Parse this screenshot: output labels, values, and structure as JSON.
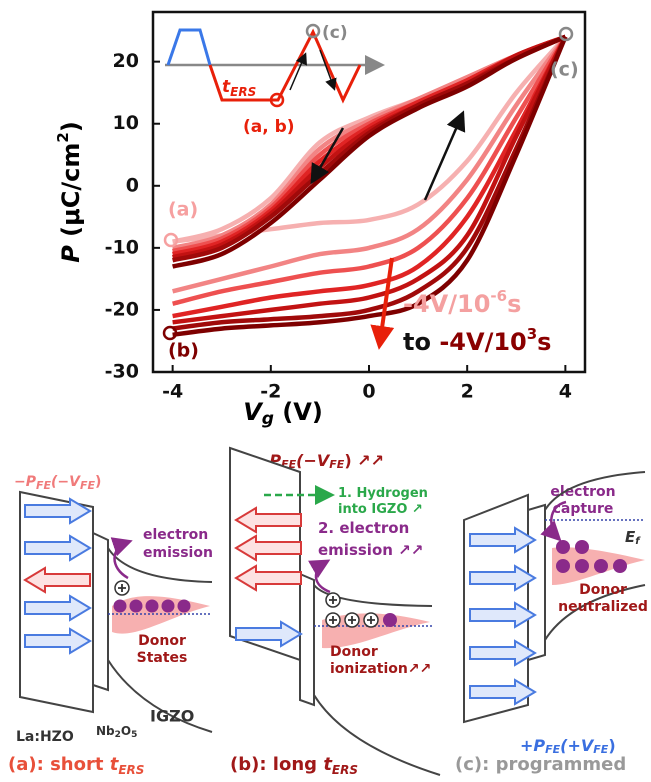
{
  "chart_data": {
    "type": "line",
    "xlabel": [
      "V",
      "g",
      " (V)"
    ],
    "ylabel": [
      "P",
      " (μC/cm",
      "2",
      ")"
    ],
    "xlim": [
      -4.4,
      4.4
    ],
    "xticks": [
      -4,
      -2,
      0,
      2,
      4
    ],
    "ylim": [
      -30,
      28
    ],
    "yticks": [
      -30,
      -20,
      -10,
      0,
      10,
      20
    ],
    "series": [
      {
        "color": "#f6b0b0",
        "x": [
          4,
          3,
          2,
          1,
          0,
          -1,
          -2,
          -3,
          -4,
          null,
          -4,
          -3,
          -2,
          -1,
          0,
          1,
          2,
          3,
          4
        ],
        "values": [
          24,
          21,
          17.5,
          14,
          11,
          7,
          -2,
          -7,
          -9,
          null,
          -9,
          -8,
          -7,
          -6,
          -5.5,
          -3,
          4,
          15,
          24
        ]
      },
      {
        "color": "#f28484",
        "x": [
          4,
          3,
          2,
          1,
          0,
          -1,
          -2,
          -3,
          -4,
          null,
          -4,
          -3,
          -2,
          -1,
          0,
          1,
          2,
          3,
          4
        ],
        "values": [
          24,
          21,
          17.5,
          14,
          10.5,
          6,
          -3,
          -8,
          -10,
          null,
          -17,
          -15,
          -13,
          -11,
          -10,
          -7,
          1,
          13,
          24
        ]
      },
      {
        "color": "#ee5050",
        "x": [
          4,
          3,
          2,
          1,
          0,
          -1,
          -2,
          -3,
          -4,
          null,
          -4,
          -3,
          -2,
          -1,
          0,
          1,
          2,
          3,
          4
        ],
        "values": [
          24,
          21,
          17,
          13.5,
          10,
          5,
          -3.5,
          -8.5,
          -10.5,
          null,
          -19,
          -17,
          -15.5,
          -14,
          -13,
          -10,
          -2,
          11,
          24
        ]
      },
      {
        "color": "#e02424",
        "x": [
          4,
          3,
          2,
          1,
          0,
          -1,
          -2,
          -3,
          -4,
          null,
          -4,
          -3,
          -2,
          -1,
          0,
          1,
          2,
          3,
          4
        ],
        "values": [
          24,
          21,
          17,
          13.5,
          9.5,
          4,
          -4,
          -9,
          -11,
          null,
          -21,
          -19.5,
          -18,
          -17,
          -16,
          -13,
          -5,
          9,
          24
        ]
      },
      {
        "color": "#c21212",
        "x": [
          4,
          3,
          2,
          1,
          0,
          -1,
          -2,
          -3,
          -4,
          null,
          -4,
          -3,
          -2,
          -1,
          0,
          1,
          2,
          3,
          4
        ],
        "values": [
          24,
          21,
          16.5,
          13,
          9,
          3,
          -4.5,
          -9.5,
          -11.5,
          null,
          -22,
          -21,
          -20,
          -19,
          -18,
          -15,
          -8,
          8,
          24
        ]
      },
      {
        "color": "#a00a0a",
        "x": [
          4,
          3,
          2,
          1,
          0,
          -1,
          -2,
          -3,
          -4,
          null,
          -4,
          -3,
          -2,
          -1,
          0,
          1,
          2,
          3,
          4
        ],
        "values": [
          24,
          20.5,
          16.5,
          13,
          8.5,
          2,
          -5,
          -10,
          -12,
          null,
          -23,
          -22,
          -21.5,
          -21,
          -20,
          -17,
          -10,
          6,
          24
        ]
      },
      {
        "color": "#7e0000",
        "x": [
          4,
          3,
          2,
          1,
          0,
          -1,
          -2,
          -3,
          -4,
          null,
          -4,
          -3,
          -2,
          -1,
          0,
          1,
          2,
          3,
          4
        ],
        "values": [
          24,
          20.5,
          16,
          12.5,
          8,
          1,
          -6,
          -11,
          -13,
          null,
          -24,
          -23,
          -22.5,
          -22,
          -21,
          -19,
          -12,
          5,
          24
        ]
      }
    ],
    "annotations": {
      "marker_a": "(a)",
      "marker_b": "(b)",
      "marker_c": "(c)",
      "from": [
        "-4V/10",
        "-6",
        "s"
      ],
      "to": [
        "to ",
        "-4V/10",
        "3",
        "s"
      ],
      "inset_t": [
        "t",
        "ERS"
      ],
      "inset_ab": "(a, b)",
      "inset_c": "(c)"
    }
  },
  "panel_a": {
    "caption": [
      "(a): short ",
      "t",
      "ERS"
    ],
    "polarization": [
      "−P",
      "FE",
      "(−V",
      "FE",
      ")"
    ],
    "emission": [
      "electron",
      "emission"
    ],
    "donor": [
      "Donor",
      "States"
    ],
    "layer_fe": "La:HZO",
    "layer_il": [
      "Nb",
      "2",
      "O",
      "5"
    ],
    "layer_sc": "IGZO"
  },
  "panel_b": {
    "caption": [
      "(b): long ",
      "t",
      "ERS"
    ],
    "polarization": [
      "−P",
      "FE",
      "(−V",
      "FE",
      ") ↗↗"
    ],
    "step1": [
      "1. Hydrogen",
      "into IGZO ↗"
    ],
    "step2": [
      "2. electron",
      "emission ↗↗"
    ],
    "donor": [
      "Donor",
      "ionization↗↗"
    ]
  },
  "panel_c": {
    "caption": "(c): programmed",
    "capture": [
      "electron",
      "capture"
    ],
    "fermi": [
      "E",
      "f"
    ],
    "donor": [
      "Donor",
      "neutralized"
    ],
    "polarization": [
      "+P",
      "FE",
      "(+V",
      "FE",
      ")"
    ]
  }
}
